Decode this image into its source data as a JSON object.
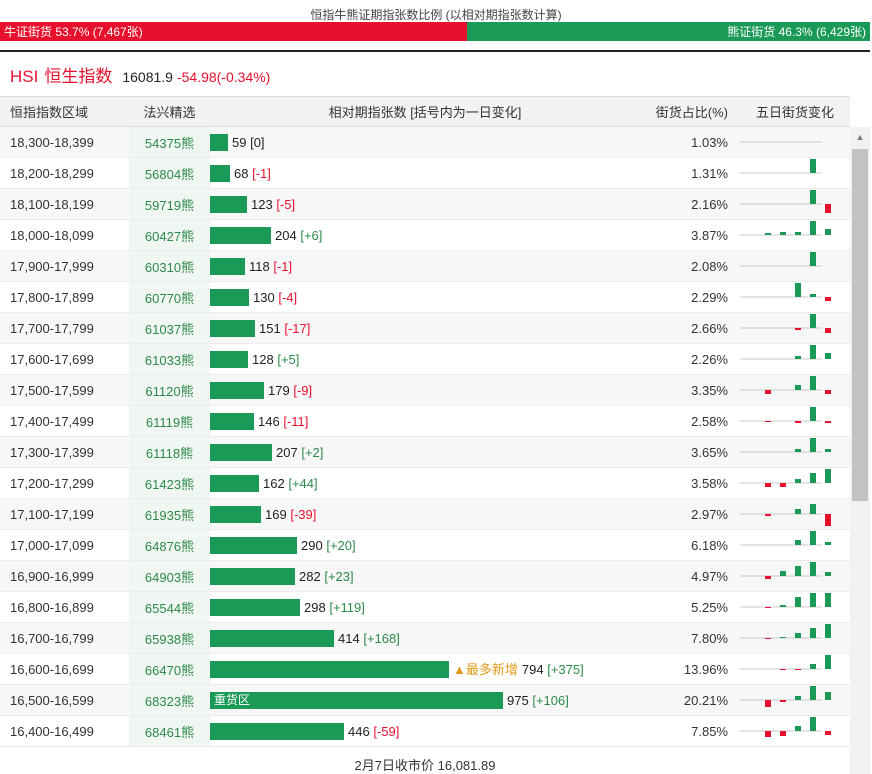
{
  "ratio": {
    "title": "恒指牛熊证期指张数比例 (以相对期指张数计算)",
    "bull_label": "牛证街货 53.7% (7,467张)",
    "bear_label": "熊证街货 46.3% (6,429张)",
    "bull_share": 53.7,
    "bull_color": "#e8112d",
    "bear_color": "#1a9a56"
  },
  "index": {
    "code": "HSI",
    "name": "恒生指数",
    "price": "16081.9",
    "change": "-54.98(-0.34%)"
  },
  "table": {
    "headers": {
      "range": "恒指指数区域",
      "code": "法兴精选",
      "contracts": "相对期指张数 [括号内为一日变化]",
      "share": "街货占比(%)",
      "spark": "五日街货变化"
    },
    "max_contracts": 975,
    "rows": [
      {
        "range": "18,300-18,399",
        "code": "54375熊",
        "contracts": 59,
        "change": "[0]",
        "change_dir": "zero",
        "tag": "",
        "inbar": "",
        "share": "1.03%",
        "spark": [
          0,
          0,
          0,
          0,
          0
        ]
      },
      {
        "range": "18,200-18,299",
        "code": "56804熊",
        "contracts": 68,
        "change": "[-1]",
        "change_dir": "neg",
        "tag": "",
        "inbar": "",
        "share": "1.31%",
        "spark": [
          0,
          0,
          0,
          14,
          0
        ]
      },
      {
        "range": "18,100-18,199",
        "code": "59719熊",
        "contracts": 123,
        "change": "[-5]",
        "change_dir": "neg",
        "tag": "",
        "inbar": "",
        "share": "2.16%",
        "spark": [
          0,
          0,
          0,
          14,
          -9
        ]
      },
      {
        "range": "18,000-18,099",
        "code": "60427熊",
        "contracts": 204,
        "change": "[+6]",
        "change_dir": "pos",
        "tag": "",
        "inbar": "",
        "share": "3.87%",
        "spark": [
          2,
          3,
          3,
          14,
          6
        ]
      },
      {
        "range": "17,900-17,999",
        "code": "60310熊",
        "contracts": 118,
        "change": "[-1]",
        "change_dir": "neg",
        "tag": "",
        "inbar": "",
        "share": "2.08%",
        "spark": [
          0,
          0,
          0,
          14,
          0
        ]
      },
      {
        "range": "17,800-17,899",
        "code": "60770熊",
        "contracts": 130,
        "change": "[-4]",
        "change_dir": "neg",
        "tag": "",
        "inbar": "",
        "share": "2.29%",
        "spark": [
          0,
          0,
          14,
          3,
          -4
        ]
      },
      {
        "range": "17,700-17,799",
        "code": "61037熊",
        "contracts": 151,
        "change": "[-17]",
        "change_dir": "neg",
        "tag": "",
        "inbar": "",
        "share": "2.66%",
        "spark": [
          0,
          0,
          -2,
          14,
          -5
        ]
      },
      {
        "range": "17,600-17,699",
        "code": "61033熊",
        "contracts": 128,
        "change": "[+5]",
        "change_dir": "pos",
        "tag": "",
        "inbar": "",
        "share": "2.26%",
        "spark": [
          0,
          0,
          3,
          14,
          6
        ]
      },
      {
        "range": "17,500-17,599",
        "code": "61120熊",
        "contracts": 179,
        "change": "[-9]",
        "change_dir": "neg",
        "tag": "",
        "inbar": "",
        "share": "3.35%",
        "spark": [
          -4,
          0,
          5,
          14,
          -4
        ]
      },
      {
        "range": "17,400-17,499",
        "code": "61119熊",
        "contracts": 146,
        "change": "[-11]",
        "change_dir": "neg",
        "tag": "",
        "inbar": "",
        "share": "2.58%",
        "spark": [
          -1,
          0,
          -2,
          14,
          -2
        ]
      },
      {
        "range": "17,300-17,399",
        "code": "61118熊",
        "contracts": 207,
        "change": "[+2]",
        "change_dir": "pos",
        "tag": "",
        "inbar": "",
        "share": "3.65%",
        "spark": [
          0,
          0,
          3,
          14,
          3
        ]
      },
      {
        "range": "17,200-17,299",
        "code": "61423熊",
        "contracts": 162,
        "change": "[+44]",
        "change_dir": "pos",
        "tag": "",
        "inbar": "",
        "share": "3.58%",
        "spark": [
          -4,
          -4,
          4,
          10,
          14
        ]
      },
      {
        "range": "17,100-17,199",
        "code": "61935熊",
        "contracts": 169,
        "change": "[-39]",
        "change_dir": "neg",
        "tag": "",
        "inbar": "",
        "share": "2.97%",
        "spark": [
          -2,
          0,
          5,
          10,
          -12
        ]
      },
      {
        "range": "17,000-17,099",
        "code": "64876熊",
        "contracts": 290,
        "change": "[+20]",
        "change_dir": "pos",
        "tag": "",
        "inbar": "",
        "share": "6.18%",
        "spark": [
          0,
          0,
          5,
          14,
          3
        ]
      },
      {
        "range": "16,900-16,999",
        "code": "64903熊",
        "contracts": 282,
        "change": "[+23]",
        "change_dir": "pos",
        "tag": "",
        "inbar": "",
        "share": "4.97%",
        "spark": [
          -3,
          5,
          10,
          14,
          4
        ]
      },
      {
        "range": "16,800-16,899",
        "code": "65544熊",
        "contracts": 298,
        "change": "[+119]",
        "change_dir": "pos",
        "tag": "",
        "inbar": "",
        "share": "5.25%",
        "spark": [
          -1,
          2,
          10,
          14,
          14
        ]
      },
      {
        "range": "16,700-16,799",
        "code": "65938熊",
        "contracts": 414,
        "change": "[+168]",
        "change_dir": "pos",
        "tag": "",
        "inbar": "",
        "share": "7.80%",
        "spark": [
          -1,
          1,
          5,
          10,
          14
        ]
      },
      {
        "range": "16,600-16,699",
        "code": "66470熊",
        "contracts": 794,
        "change": "[+375]",
        "change_dir": "pos",
        "tag": "▲最多新增",
        "inbar": "",
        "share": "13.96%",
        "spark": [
          0,
          -1,
          -1,
          5,
          14
        ]
      },
      {
        "range": "16,500-16,599",
        "code": "68323熊",
        "contracts": 975,
        "change": "[+106]",
        "change_dir": "pos",
        "tag": "",
        "inbar": "重货区",
        "share": "20.21%",
        "spark": [
          -7,
          -2,
          4,
          14,
          8
        ]
      },
      {
        "range": "16,400-16,499",
        "code": "68461熊",
        "contracts": 446,
        "change": "[-59]",
        "change_dir": "neg",
        "tag": "",
        "inbar": "",
        "share": "7.85%",
        "spark": [
          -6,
          -5,
          5,
          14,
          -4
        ]
      }
    ]
  },
  "footer": {
    "close_text": "2月7日收市价 16,081.89"
  }
}
